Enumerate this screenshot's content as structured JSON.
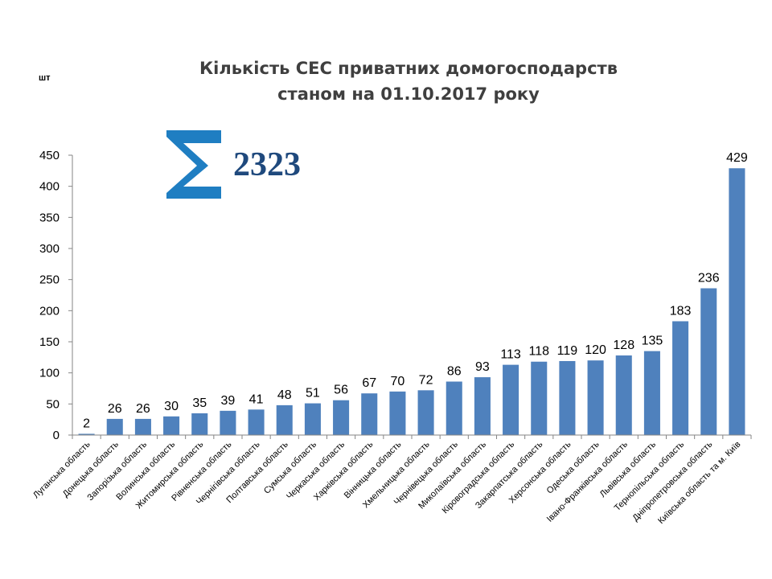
{
  "chart_data": {
    "type": "bar",
    "title": [
      "Кількість СЕС приватних домогосподарств",
      "станом на 01.10.2017 року"
    ],
    "unit_label": "шт",
    "total": {
      "symbol": "Σ",
      "value": "2323",
      "color": "#1f497d",
      "symbol_color": "#1f7ec2"
    },
    "ylim": [
      0,
      450
    ],
    "yticks": [
      0,
      50,
      100,
      150,
      200,
      250,
      300,
      350,
      400,
      450
    ],
    "bar_color": "#4f81bd",
    "categories": [
      "Луганська область",
      "Донецька область",
      "Запорізька область",
      "Волинська область",
      "Житомирська область",
      "Рівненська область",
      "Чернігівська область",
      "Полтавська область",
      "Сумська область",
      "Черкаська область",
      "Харківська область",
      "Вінницька область",
      "Хмельницька область",
      "Чернівецька область",
      "Миколаївська область",
      "Кіровоградська область",
      "Закарпатська область",
      "Херсонська область",
      "Одеська область",
      "Івано-Франківська область",
      "Львівська область",
      "Тернопільська область",
      "Дніпропетровська область",
      "Київська область та м. Київ"
    ],
    "values": [
      2,
      26,
      26,
      30,
      35,
      39,
      41,
      48,
      51,
      56,
      67,
      70,
      72,
      86,
      93,
      113,
      118,
      119,
      120,
      128,
      135,
      183,
      236,
      429
    ],
    "grid": false,
    "legend": "none"
  }
}
